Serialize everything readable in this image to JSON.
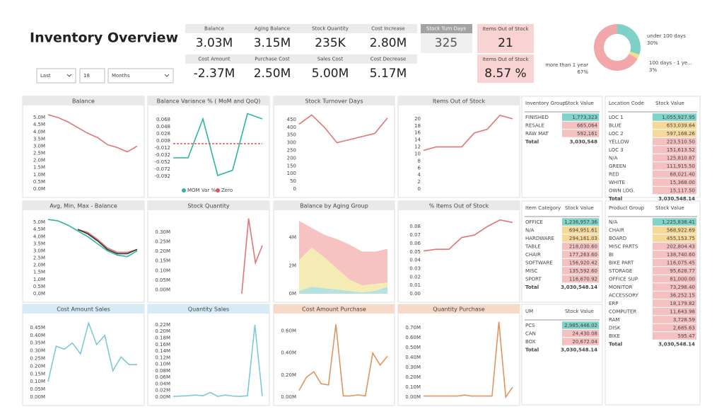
{
  "title": "Inventory Overview",
  "filters": [
    "Last",
    "18",
    "Months"
  ],
  "kpis": [
    {
      "label": "Balance",
      "value": "3.03M"
    },
    {
      "label": "Aging Balance",
      "value": "3.15M"
    },
    {
      "label": "Stock Quantity",
      "value": "235K"
    },
    {
      "label": "Cost Increase",
      "value": "2.80M"
    },
    {
      "label": "Cost Amount",
      "value": "-2.37M"
    },
    {
      "label": "Purchase Cost",
      "value": "2.50M"
    },
    {
      "label": "Sales Cost",
      "value": "5.00M"
    },
    {
      "label": "Cost Decrease",
      "value": "5.17M"
    }
  ],
  "turn_days": {
    "label": "Stock Turn Days",
    "value": "325"
  },
  "out_of_stock": {
    "label": "Items Out of Stock",
    "value": "21"
  },
  "out_of_stock_pct": {
    "label": "Items Out of Stock",
    "value": "8.57 %"
  },
  "chart_data": [
    {
      "type": "donut",
      "categories": [
        "under 100 days",
        "100 days - 1 ye...",
        "more than 1 year"
      ],
      "values": [
        30,
        3,
        67
      ],
      "value_labels": [
        "30%",
        "3%",
        "67%"
      ],
      "colors": [
        "#7fd1c7",
        "#f1e08a",
        "#f2a7a9"
      ]
    },
    {
      "type": "line",
      "title": "Balance",
      "categories": [
        null,
        null,
        null,
        null,
        null,
        null,
        null,
        null,
        null,
        null
      ],
      "series": [
        {
          "color": "#e07575",
          "values": [
            5.2,
            5.0,
            4.7,
            4.3,
            3.9,
            3.6,
            3.1,
            2.9,
            2.6,
            3.0
          ]
        }
      ],
      "ylim": [
        0,
        5.4
      ],
      "yticks": [
        {
          "value": 0,
          "label": "0.0M"
        },
        {
          "value": 0.5,
          "label": "0.5M"
        },
        {
          "value": 1,
          "label": "1.0M"
        },
        {
          "value": 1.5,
          "label": "1.5M"
        },
        {
          "value": 2,
          "label": "2.0M"
        },
        {
          "value": 2.5,
          "label": "2.5M"
        },
        {
          "value": 3,
          "label": "3.0M"
        },
        {
          "value": 3.5,
          "label": "3.5M"
        },
        {
          "value": 4,
          "label": "4.0M"
        },
        {
          "value": 4.5,
          "label": "4.5M"
        },
        {
          "value": 5,
          "label": "5.0M"
        }
      ]
    },
    {
      "type": "line",
      "title": "Balance Variance % ( MoM and QoQ)",
      "categories": [
        null,
        null,
        null,
        null,
        null,
        null,
        null
      ],
      "series": [
        {
          "name": "MOM Var %",
          "color": "#2bb5a0",
          "values": [
            -0.04,
            -0.04,
            0.07,
            -0.09,
            -0.075,
            0.085,
            0.07
          ]
        },
        {
          "name": "Zero",
          "color": "#e05555",
          "dashed": true,
          "values": [
            0,
            0,
            0,
            0,
            0,
            0,
            0
          ]
        }
      ],
      "legend": "bottom",
      "ylim": [
        -0.1,
        0.09
      ],
      "yticks": [
        0.068,
        0.048,
        0.028,
        0.008,
        -0.012,
        -0.032,
        -0.052,
        -0.072,
        -0.092
      ]
    },
    {
      "type": "line",
      "title": "Stock Turnover Days",
      "categories": [
        null,
        null,
        null,
        null,
        null,
        null,
        null,
        null
      ],
      "series": [
        {
          "color": "#e07575",
          "values": [
            420,
            480,
            400,
            300,
            320,
            340,
            360,
            460
          ]
        }
      ],
      "ylim": [
        0,
        500
      ],
      "yticks": [
        0,
        50,
        100,
        150,
        200,
        250,
        300,
        350,
        400,
        450
      ]
    },
    {
      "type": "line",
      "title": "Items Out of Stock",
      "categories": [
        null,
        null,
        null,
        null,
        null,
        null,
        null,
        null
      ],
      "series": [
        {
          "color": "#e07575",
          "values": [
            11,
            12,
            12,
            12,
            16,
            17,
            21,
            20
          ]
        }
      ],
      "ylim": [
        0,
        22
      ],
      "yticks": [
        0,
        2,
        4,
        6,
        8,
        10,
        12,
        14,
        16,
        18,
        20
      ]
    },
    {
      "type": "line",
      "title": "Avg, Min, Max - Balance",
      "categories": [
        null,
        null,
        null,
        null,
        null,
        null,
        null,
        null,
        null,
        null
      ],
      "series": [
        {
          "color": "#e07575",
          "values": [
            null,
            null,
            null,
            4.5,
            4.3,
            3.8,
            3.2,
            2.9,
            2.9,
            3.1
          ]
        },
        {
          "color": "#333333",
          "values": [
            null,
            null,
            null,
            4.5,
            4.2,
            3.7,
            3.1,
            2.8,
            2.8,
            3.1
          ]
        },
        {
          "color": "#2bb5a0",
          "values": [
            5.2,
            5.1,
            4.8,
            4.4,
            4.0,
            3.5,
            3.0,
            2.7,
            2.6,
            3.0
          ]
        }
      ],
      "ylim": [
        0,
        5.4
      ],
      "yticks": [
        {
          "value": 0,
          "label": "0.0M"
        },
        {
          "value": 0.5,
          "label": "0.5M"
        },
        {
          "value": 1,
          "label": "1.0M"
        },
        {
          "value": 1.5,
          "label": "1.5M"
        },
        {
          "value": 2,
          "label": "2.0M"
        },
        {
          "value": 2.5,
          "label": "2.5M"
        },
        {
          "value": 3,
          "label": "3.0M"
        },
        {
          "value": 3.5,
          "label": "3.5M"
        },
        {
          "value": 4,
          "label": "4.0M"
        },
        {
          "value": 4.5,
          "label": "4.5M"
        },
        {
          "value": 5,
          "label": "5.0M"
        }
      ]
    },
    {
      "type": "line",
      "title": "Stock Quantity",
      "categories": [
        null,
        null,
        null,
        null,
        null,
        null,
        null,
        null,
        null,
        null,
        null,
        null,
        null,
        null
      ],
      "series": [
        {
          "color": "#e07575",
          "values": [
            null,
            null,
            null,
            null,
            null,
            null,
            null,
            null,
            null,
            null,
            -0.02,
            0.37,
            0.14,
            0.23
          ]
        }
      ],
      "ylim": [
        -0.02,
        0.38
      ],
      "yticks": [
        {
          "value": 0,
          "label": "0.00M"
        },
        {
          "value": 0.05,
          "label": "0.05M"
        },
        {
          "value": 0.1,
          "label": "0.10M"
        },
        {
          "value": 0.15,
          "label": "0.15M"
        },
        {
          "value": 0.2,
          "label": "0.20M"
        },
        {
          "value": 0.25,
          "label": "0.25M"
        },
        {
          "value": 0.3,
          "label": "0.30M"
        }
      ]
    },
    {
      "type": "area",
      "title": "Balance by Aging Group",
      "categories": [
        null,
        null,
        null,
        null,
        null,
        null,
        null,
        null
      ],
      "series": [
        {
          "color": "#a8ddd6",
          "values": [
            0.2,
            0.5,
            0.4,
            0.3,
            0.2,
            0.1,
            0.2,
            0.5
          ]
        },
        {
          "color": "#f3e9a8",
          "values": [
            2.2,
            2.8,
            2.2,
            1.5,
            0.8,
            0.5,
            0.5,
            0.3
          ]
        },
        {
          "color": "#f4b7b7",
          "values": [
            2.8,
            1.4,
            1.6,
            2.1,
            2.5,
            2.4,
            2.3,
            2.4
          ]
        }
      ],
      "ylim": [
        0,
        5.5
      ],
      "yticks": [
        {
          "value": 0,
          "label": "0M"
        },
        {
          "value": 2,
          "label": "2M"
        },
        {
          "value": 4,
          "label": "4M"
        }
      ]
    },
    {
      "type": "line",
      "title": "% Items Out of Stock",
      "categories": [
        null,
        null,
        null,
        null,
        null,
        null,
        null,
        null
      ],
      "series": [
        {
          "color": "#e07575",
          "values": [
            0.051,
            0.053,
            0.053,
            0.067,
            0.07,
            0.08,
            0.088,
            0.085
          ]
        }
      ],
      "ylim": [
        0,
        0.092
      ],
      "yticks": [
        {
          "value": 0,
          "label": "0.00"
        },
        0.01,
        0.02,
        0.03,
        0.04,
        0.05,
        0.06,
        0.07,
        0.08
      ]
    },
    {
      "type": "line",
      "title": "Cost Amount Sales",
      "header_color": "#d6ebf5",
      "categories": [
        null,
        null,
        null,
        null,
        null,
        null,
        null,
        null,
        null,
        null,
        null,
        null
      ],
      "series": [
        {
          "color": "#7cc9d8",
          "values": [
            0.1,
            0.33,
            0.31,
            0.35,
            0.28,
            0.48,
            0.34,
            0.4,
            0.17,
            0.26,
            0.21,
            0.21
          ]
        }
      ],
      "ylim": [
        0,
        0.5
      ],
      "yticks": [
        {
          "value": 0,
          "label": "0.00M"
        },
        {
          "value": 0.05,
          "label": "0.05M"
        },
        {
          "value": 0.1,
          "label": "0.10M"
        },
        {
          "value": 0.15,
          "label": "0.15M"
        },
        {
          "value": 0.2,
          "label": "0.20M"
        },
        {
          "value": 0.25,
          "label": "0.25M"
        },
        {
          "value": 0.3,
          "label": "0.30M"
        },
        {
          "value": 0.35,
          "label": "0.35M"
        },
        {
          "value": 0.4,
          "label": "0.40M"
        },
        {
          "value": 0.45,
          "label": "0.45M"
        }
      ]
    },
    {
      "type": "line",
      "title": "Quantity Sales",
      "header_color": "#d6ebf5",
      "categories": [
        null,
        null,
        null,
        null,
        null,
        null,
        null,
        null,
        null,
        null,
        null,
        null,
        null
      ],
      "series": [
        {
          "color": "#7cc9d8",
          "values": [
            0.002,
            0.003,
            0.004,
            0.006,
            0.004,
            0.014,
            0.002,
            0.006,
            0.003,
            0.002,
            0.004,
            0.22,
            0.003
          ]
        }
      ],
      "ylim": [
        0,
        0.235
      ],
      "yticks": [
        {
          "value": 0,
          "label": "0.00M"
        },
        {
          "value": 0.02,
          "label": "0.02M"
        },
        {
          "value": 0.04,
          "label": "0.04M"
        },
        {
          "value": 0.06,
          "label": "0.06M"
        },
        {
          "value": 0.08,
          "label": "0.08M"
        },
        {
          "value": 0.1,
          "label": "0.10M"
        },
        {
          "value": 0.12,
          "label": "0.12M"
        },
        {
          "value": 0.14,
          "label": "0.14M"
        },
        {
          "value": 0.16,
          "label": "0.16M"
        },
        {
          "value": 0.18,
          "label": "0.18M"
        },
        {
          "value": 0.2,
          "label": "0.20M"
        },
        {
          "value": 0.22,
          "label": "0.22M"
        }
      ]
    },
    {
      "type": "line",
      "title": "Cost Amount Purchase",
      "header_color": "#f7d9c8",
      "categories": [
        null,
        null,
        null,
        null,
        null,
        null,
        null,
        null,
        null,
        null,
        null,
        null,
        null
      ],
      "series": [
        {
          "color": "#e0955f",
          "values": [
            0.06,
            0.18,
            0.23,
            0.12,
            0.11,
            0.66,
            0.01,
            0.01,
            0.02,
            0.01,
            0.4,
            0.29,
            0.37
          ]
        }
      ],
      "ylim": [
        0,
        0.7
      ],
      "yticks": [
        {
          "value": 0,
          "label": "0.00M"
        },
        {
          "value": 0.2,
          "label": "0.20M"
        },
        {
          "value": 0.4,
          "label": "0.40M"
        },
        {
          "value": 0.6,
          "label": "0.60M"
        }
      ]
    },
    {
      "type": "line",
      "title": "Quantity Purchase",
      "header_color": "#f7d9c8",
      "categories": [
        null,
        null,
        null,
        null,
        null,
        null,
        null,
        null,
        null,
        null,
        null,
        null,
        null,
        null
      ],
      "series": [
        {
          "color": "#e0955f",
          "values": [
            0.01,
            0.01,
            0.01,
            0.01,
            0.01,
            0.01,
            0.02,
            0.01,
            0.01,
            0.01,
            0.01,
            0.76,
            0.0,
            0.1
          ]
        }
      ],
      "ylim": [
        0,
        0.78
      ],
      "yticks": [
        {
          "value": 0,
          "label": "0.00M"
        },
        {
          "value": 0.1,
          "label": "0.10M"
        },
        {
          "value": 0.2,
          "label": "0.20M"
        },
        {
          "value": 0.3,
          "label": "0.30M"
        },
        {
          "value": 0.4,
          "label": "0.40M"
        },
        {
          "value": 0.5,
          "label": "0.50M"
        },
        {
          "value": 0.6,
          "label": "0.60M"
        },
        {
          "value": 0.7,
          "label": "0.70M"
        }
      ]
    }
  ],
  "tables": [
    {
      "headers": [
        "Inventory Group",
        "Stock Value"
      ],
      "rows": [
        [
          "FINISHED",
          "1,773,323"
        ],
        [
          "RESALE",
          "665,064"
        ],
        [
          "RAW MAT",
          "592,161"
        ]
      ],
      "total": [
        "Total",
        "3,030,548"
      ]
    },
    {
      "headers": [
        "Location Code",
        "Stock Value"
      ],
      "rows": [
        [
          "LOC 1",
          "1,055,927.95"
        ],
        [
          "BLUE",
          "653,039.64"
        ],
        [
          "LOC 2",
          "597,168.26"
        ],
        [
          "YELLOW",
          "223,510.50"
        ],
        [
          "LOC 3",
          "151,613.52"
        ],
        [
          "N/A",
          "125,810.87"
        ],
        [
          "GREEN",
          "111,915.50"
        ],
        [
          "RED",
          "68,021.40"
        ],
        [
          "WHITE",
          "15,368.00"
        ],
        [
          "OWN LOG.",
          "15,117.50"
        ]
      ],
      "total": [
        "Total",
        "3,030,548.14"
      ]
    },
    {
      "headers": [
        "Item Category",
        "Stock Value"
      ],
      "rows": [
        [
          "OFFICE",
          "1,236,957.36"
        ],
        [
          "N/A",
          "694,951.61"
        ],
        [
          "HARDWARE",
          "294,161.03"
        ],
        [
          "TABLE",
          "218,030.60"
        ],
        [
          "CHAIR",
          "177,263.60"
        ],
        [
          "SOFTWARE",
          "156,920.42"
        ],
        [
          "MISC",
          "135,592.60"
        ],
        [
          "SPORT",
          "116,670.92"
        ]
      ],
      "total": [
        "Total",
        "3,030,548.14"
      ]
    },
    {
      "headers": [
        "UM",
        "Stock Value"
      ],
      "rows": [
        [
          "PCS",
          "2,985,446.02"
        ],
        [
          "CAN",
          "24,430.08"
        ],
        [
          "BOX",
          "20,672.04"
        ]
      ],
      "total": [
        "Total",
        "3,030,548.14"
      ]
    },
    {
      "headers": [
        "Product Group",
        "Stock Value"
      ],
      "rows": [
        [
          "N/A",
          "1,225,838.41"
        ],
        [
          "CHAIR",
          "568,922.69"
        ],
        [
          "BOARD",
          "455,153.75"
        ],
        [
          "MISC PARTS",
          "202,804.43"
        ],
        [
          "BI",
          "138,740.60"
        ],
        [
          "BIKE PART",
          "116,075.45"
        ],
        [
          "STORAGE",
          "95,628.77"
        ],
        [
          "OFFICE SUP",
          "81,000.00"
        ],
        [
          "MONITOR",
          "73,298.40"
        ],
        [
          "ACCESSORY",
          "36,252.15"
        ],
        [
          "ERP",
          "18,179.82"
        ],
        [
          "COMPUTER",
          "11,643.98"
        ],
        [
          "RAM",
          "3,728.59"
        ],
        [
          "DISK",
          "2,685.63"
        ],
        [
          "BIKE",
          "595.47"
        ]
      ],
      "total": [
        "Total",
        "3,030,548.14"
      ]
    }
  ]
}
